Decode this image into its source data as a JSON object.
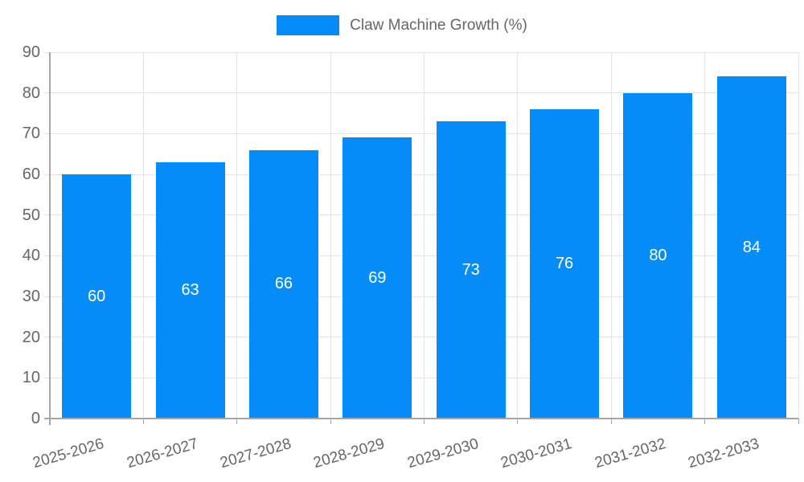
{
  "colors": {
    "bar": "#058DF7",
    "grid": "#e3e3e3",
    "axis": "#a6a6a6",
    "tick_text": "#666666",
    "value_label": "#ffffff"
  },
  "chart_data": {
    "type": "bar",
    "title": "",
    "legend": {
      "label": "Claw Machine Growth (%)",
      "position": "top"
    },
    "categories": [
      "2025-2026",
      "2026-2027",
      "2027-2028",
      "2028-2029",
      "2029-2030",
      "2030-2031",
      "2031-2032",
      "2032-2033"
    ],
    "values": [
      60,
      63,
      66,
      69,
      73,
      76,
      80,
      84
    ],
    "ylim": [
      0,
      90
    ],
    "yticks": [
      0,
      10,
      20,
      30,
      40,
      50,
      60,
      70,
      80,
      90
    ],
    "grid": true,
    "value_labels_position": "inside-center",
    "xtick_rotation_deg": -16
  }
}
